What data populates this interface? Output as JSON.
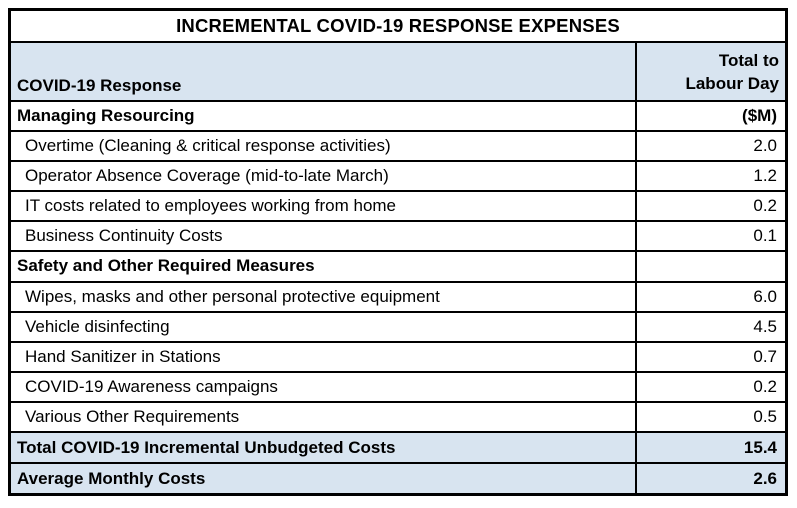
{
  "title": "INCREMENTAL COVID-19 RESPONSE EXPENSES",
  "header": {
    "label_column": "COVID-19 Response",
    "value_column_line1": "Total to",
    "value_column_line2": "Labour Day"
  },
  "rows": [
    {
      "type": "section",
      "label": "Managing Resourcing",
      "value": "($M)"
    },
    {
      "type": "data",
      "label": "Overtime (Cleaning & critical response activities)",
      "value": "2.0"
    },
    {
      "type": "data",
      "label": "Operator Absence Coverage (mid-to-late March)",
      "value": "1.2"
    },
    {
      "type": "data",
      "label": "IT costs related to employees working from home",
      "value": "0.2"
    },
    {
      "type": "data",
      "label": "Business Continuity Costs",
      "value": "0.1"
    },
    {
      "type": "section",
      "label": "Safety and Other Required Measures",
      "value": ""
    },
    {
      "type": "data",
      "label": "Wipes, masks and other personal protective equipment",
      "value": "6.0"
    },
    {
      "type": "data",
      "label": "Vehicle disinfecting",
      "value": "4.5"
    },
    {
      "type": "data",
      "label": "Hand Sanitizer in Stations",
      "value": "0.7"
    },
    {
      "type": "data",
      "label": "COVID-19 Awareness campaigns",
      "value": "0.2"
    },
    {
      "type": "data",
      "label": "Various Other Requirements",
      "value": "0.5"
    },
    {
      "type": "total",
      "label": "Total COVID-19 Incremental Unbudgeted Costs",
      "value": "15.4"
    },
    {
      "type": "total",
      "label": "Average Monthly Costs",
      "value": "2.6"
    }
  ],
  "colors": {
    "highlight": "#d8e4f0",
    "border": "#000000",
    "background": "#ffffff"
  }
}
